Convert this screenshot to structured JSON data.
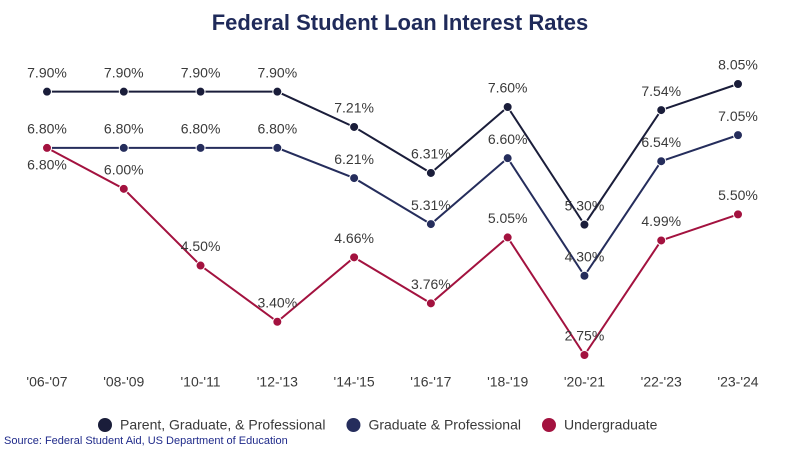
{
  "chart_data": {
    "type": "line",
    "title": "Federal Student Loan Interest Rates",
    "source": "Source: Federal Student Aid, US Department of Education",
    "categories": [
      "'06-'07",
      "'08-'09",
      "'10-'11",
      "'12-'13",
      "'14-'15",
      "'16-'17",
      "'18-'19",
      "'20-'21",
      "'22-'23",
      "'23-'24"
    ],
    "series": [
      {
        "name": "Parent, Graduate, & Professional",
        "color": "#1a1d3a",
        "values": [
          7.9,
          7.9,
          7.9,
          7.9,
          7.21,
          6.31,
          7.6,
          5.3,
          7.54,
          8.05
        ],
        "value_labels": [
          "7.90%",
          "7.90%",
          "7.90%",
          "7.90%",
          "7.21%",
          "6.31%",
          "7.60%",
          "5.30%",
          "7.54%",
          "8.05%"
        ]
      },
      {
        "name": "Graduate & Professional",
        "color": "#252d5c",
        "values": [
          6.8,
          6.8,
          6.8,
          6.8,
          6.21,
          5.31,
          6.6,
          4.3,
          6.54,
          7.05
        ],
        "value_labels": [
          "6.80%",
          "6.80%",
          "6.80%",
          "6.80%",
          "6.21%",
          "5.31%",
          "6.60%",
          "4.30%",
          "6.54%",
          "7.05%"
        ]
      },
      {
        "name": "Undergraduate",
        "color": "#a3123f",
        "values": [
          6.8,
          6.0,
          4.5,
          3.4,
          4.66,
          3.76,
          5.05,
          2.75,
          4.99,
          5.5
        ],
        "value_labels": [
          "6.80%",
          "6.00%",
          "4.50%",
          "3.40%",
          "4.66%",
          "3.76%",
          "5.05%",
          "2.75%",
          "4.99%",
          "5.50%"
        ]
      }
    ]
  }
}
